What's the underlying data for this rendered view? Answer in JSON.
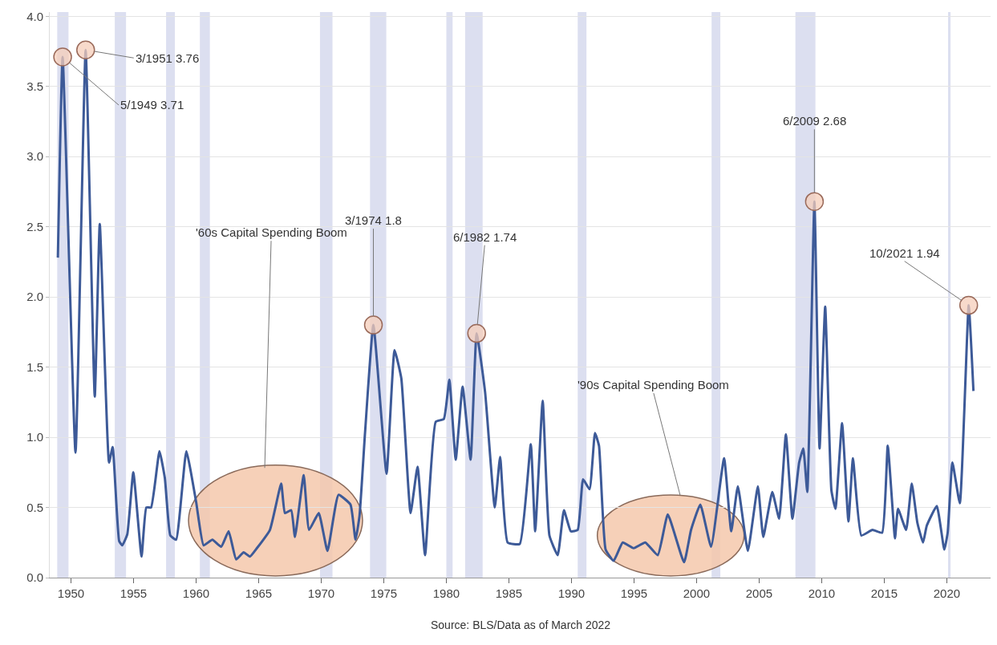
{
  "chart_data": {
    "type": "line",
    "x": [
      1948.95,
      1949.33,
      1950.36,
      1951.17,
      1951.9,
      1952.3,
      1953.04,
      1953.33,
      1953.85,
      1954.1,
      1954.5,
      1954.98,
      1955.64,
      1956.02,
      1956.4,
      1957.07,
      1957.5,
      1957.94,
      1958.4,
      1959.22,
      1960.0,
      1960.6,
      1961.3,
      1962.0,
      1962.6,
      1963.2,
      1963.8,
      1964.3,
      1964.86,
      1965.9,
      1966.8,
      1967.1,
      1967.6,
      1967.9,
      1968.6,
      1969.03,
      1969.8,
      1970.5,
      1971.38,
      1972.34,
      1972.74,
      1973.06,
      1973.5,
      1974.17,
      1975.22,
      1975.86,
      1976.4,
      1977.14,
      1977.7,
      1978.3,
      1979.15,
      1979.8,
      1980.24,
      1980.75,
      1981.3,
      1981.94,
      1982.42,
      1983.1,
      1983.87,
      1984.3,
      1984.9,
      1985.87,
      1986.75,
      1987.1,
      1987.7,
      1988.24,
      1988.9,
      1989.4,
      1989.95,
      1990.5,
      1990.93,
      1991.45,
      1991.88,
      1992.2,
      1992.73,
      1993.37,
      1994.1,
      1994.97,
      1995.9,
      1996.9,
      1997.7,
      1999.0,
      1999.56,
      2000.3,
      2001.16,
      2002.2,
      2002.77,
      2003.3,
      2004.1,
      2004.9,
      2005.33,
      2006.05,
      2006.6,
      2007.14,
      2007.66,
      2008.2,
      2008.53,
      2008.85,
      2009.42,
      2009.83,
      2010.28,
      2010.78,
      2011.1,
      2011.63,
      2012.14,
      2012.5,
      2013.17,
      2014.06,
      2014.83,
      2015.28,
      2015.86,
      2016.1,
      2016.75,
      2017.2,
      2017.65,
      2018.1,
      2018.4,
      2019.2,
      2019.8,
      2020.07,
      2020.45,
      2021.04,
      2021.75,
      2022.13
    ],
    "series": [
      {
        "color": "#3d5a98",
        "values": [
          2.28,
          3.71,
          0.89,
          3.76,
          1.29,
          2.52,
          0.82,
          0.93,
          0.26,
          0.23,
          0.31,
          0.75,
          0.15,
          0.5,
          0.5,
          0.9,
          0.71,
          0.3,
          0.27,
          0.9,
          0.54,
          0.23,
          0.27,
          0.22,
          0.33,
          0.13,
          0.18,
          0.15,
          0.21,
          0.34,
          0.67,
          0.46,
          0.48,
          0.29,
          0.73,
          0.34,
          0.46,
          0.19,
          0.59,
          0.52,
          0.27,
          0.44,
          1.03,
          1.8,
          0.74,
          1.62,
          1.42,
          0.46,
          0.79,
          0.16,
          1.11,
          1.13,
          1.41,
          0.84,
          1.36,
          0.84,
          1.74,
          1.32,
          0.5,
          0.86,
          0.25,
          0.24,
          0.95,
          0.33,
          1.26,
          0.3,
          0.16,
          0.48,
          0.33,
          0.34,
          0.7,
          0.63,
          1.03,
          0.94,
          0.2,
          0.12,
          0.25,
          0.21,
          0.25,
          0.16,
          0.45,
          0.11,
          0.34,
          0.52,
          0.22,
          0.85,
          0.33,
          0.65,
          0.19,
          0.65,
          0.29,
          0.61,
          0.42,
          1.02,
          0.42,
          0.82,
          0.92,
          0.61,
          2.68,
          0.92,
          1.93,
          0.62,
          0.49,
          1.1,
          0.4,
          0.85,
          0.3,
          0.34,
          0.32,
          0.94,
          0.28,
          0.49,
          0.34,
          0.67,
          0.39,
          0.25,
          0.37,
          0.51,
          0.2,
          0.32,
          0.82,
          0.53,
          1.94,
          1.33
        ]
      }
    ],
    "xlim": [
      1948.3,
      2023.5
    ],
    "xticks": [
      1950,
      1955,
      1960,
      1965,
      1970,
      1975,
      1980,
      1985,
      1990,
      1995,
      2000,
      2005,
      2010,
      2015,
      2020
    ],
    "ylim": [
      0,
      4.03
    ],
    "yticks": [
      {
        "value": 0,
        "label": "0.0"
      },
      {
        "value": 0.5,
        "label": "0.5"
      },
      {
        "value": 1,
        "label": "1.0"
      },
      {
        "value": 1.5,
        "label": "1.5"
      },
      {
        "value": 2,
        "label": "2.0"
      },
      {
        "value": 2.5,
        "label": "2.5"
      },
      {
        "value": 3,
        "label": "3.0"
      },
      {
        "value": 3.5,
        "label": "3.5"
      },
      {
        "value": 4,
        "label": "4.0"
      }
    ],
    "grid": "y",
    "marker": "none",
    "line_style": "solid",
    "bands": [
      {
        "axis": "x",
        "from": 1948.9,
        "to": 1949.8,
        "color": "#dcdff0"
      },
      {
        "axis": "x",
        "from": 1953.5,
        "to": 1954.4,
        "color": "#dcdff0"
      },
      {
        "axis": "x",
        "from": 1957.6,
        "to": 1958.3,
        "color": "#dcdff0"
      },
      {
        "axis": "x",
        "from": 1960.3,
        "to": 1961.1,
        "color": "#dcdff0"
      },
      {
        "axis": "x",
        "from": 1969.9,
        "to": 1970.9,
        "color": "#dcdff0"
      },
      {
        "axis": "x",
        "from": 1973.9,
        "to": 1975.2,
        "color": "#dcdff0"
      },
      {
        "axis": "x",
        "from": 1980.0,
        "to": 1980.5,
        "color": "#dcdff0"
      },
      {
        "axis": "x",
        "from": 1981.5,
        "to": 1982.9,
        "color": "#dcdff0"
      },
      {
        "axis": "x",
        "from": 1990.5,
        "to": 1991.2,
        "color": "#dcdff0"
      },
      {
        "axis": "x",
        "from": 2001.2,
        "to": 2001.9,
        "color": "#dcdff0"
      },
      {
        "axis": "x",
        "from": 2007.9,
        "to": 2009.5,
        "color": "#dcdff0"
      },
      {
        "axis": "x",
        "from": 2020.1,
        "to": 2020.3,
        "color": "#dcdff0"
      }
    ],
    "annotations": [
      {
        "text": "5/1949 3.71",
        "x": 1949.33,
        "y": 3.71
      },
      {
        "text": "3/1951 3.76",
        "x": 1951.17,
        "y": 3.76
      },
      {
        "text": "3/1974 1.8",
        "x": 1974.17,
        "y": 1.8
      },
      {
        "text": "6/1982 1.74",
        "x": 1982.42,
        "y": 1.74
      },
      {
        "text": "6/2009 2.68",
        "x": 2009.42,
        "y": 2.68
      },
      {
        "text": "10/2021 1.94",
        "x": 2021.75,
        "y": 1.94
      },
      "'60s Capital Spending Boom",
      "'90s Capital Spending Boom",
      "Source: BLS/Data as of March 2022"
    ]
  }
}
